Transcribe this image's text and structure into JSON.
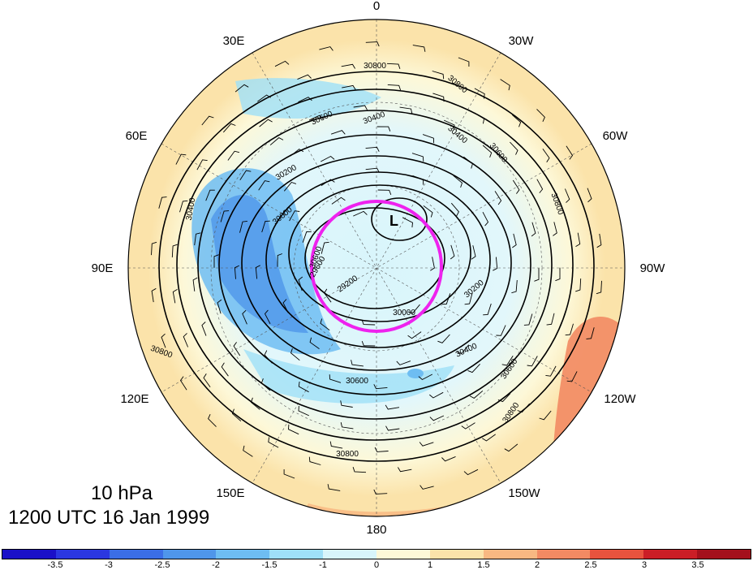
{
  "title": {
    "level": "10 hPa",
    "datetime": "1200 UTC 16 Jan 1999"
  },
  "longitude_labels": [
    "0",
    "30W",
    "60W",
    "90W",
    "120W",
    "150W",
    "180",
    "150E",
    "120E",
    "90E",
    "60E",
    "30E"
  ],
  "contour_labels": [
    "30800",
    "30800",
    "30600",
    "30400",
    "30400",
    "30600",
    "30800",
    "30200",
    "30000",
    "29600",
    "29200",
    "30000",
    "30200",
    "30400",
    "30600",
    "30800",
    "30600",
    "30400",
    "30800",
    "30600",
    "30800"
  ],
  "low_marker": "L",
  "colorbar": {
    "ticks": [
      "-3.5",
      "-3",
      "-2.5",
      "-2",
      "-1.5",
      "-1",
      "0",
      "1",
      "1.5",
      "2",
      "2.5",
      "3",
      "3.5"
    ],
    "colors": [
      "#1a10c8",
      "#2b37e0",
      "#3b6ee6",
      "#4f96ea",
      "#6ebdf2",
      "#9fe0f8",
      "#d8f5fb",
      "#fdf8d8",
      "#fbe3aa",
      "#f8b882",
      "#f28a63",
      "#e8533e",
      "#cb1e26",
      "#a4101c"
    ]
  },
  "colors": {
    "highlight_circle": "#ee22ee",
    "contour": "#000000"
  }
}
